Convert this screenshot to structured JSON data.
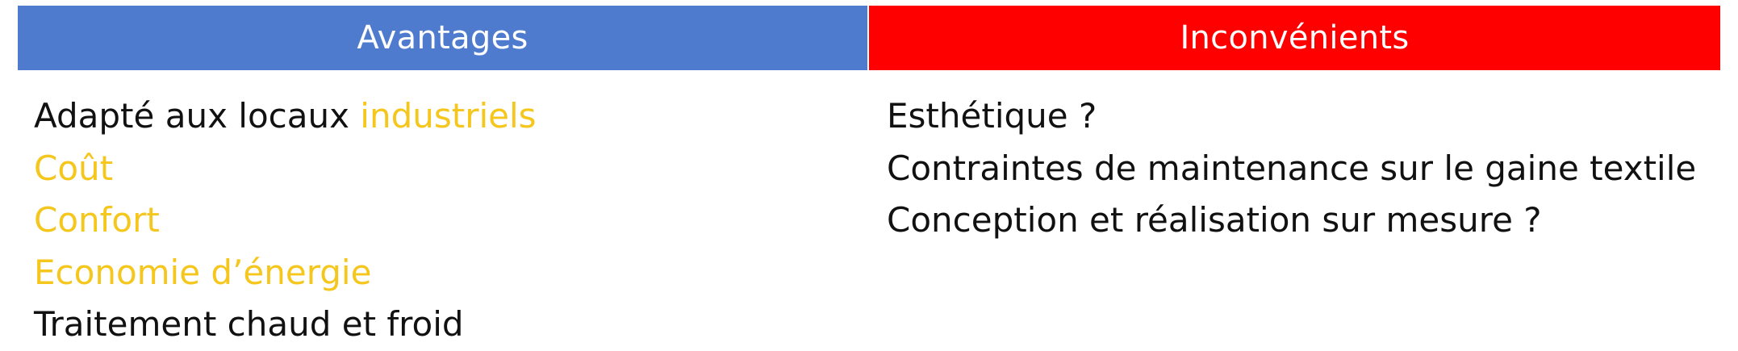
{
  "table": {
    "headers": {
      "advantages": "Avantages",
      "disadvantages": "Inconvénients"
    },
    "colors": {
      "advantages_header": "#4f7bcf",
      "disadvantages_header": "#fe0000",
      "highlight_text": "#f5c61b",
      "normal_text": "#111111"
    },
    "advantages": [
      {
        "prefix": "Adapté aux locaux ",
        "highlight": "industriels"
      },
      {
        "prefix": "",
        "highlight": "Coût"
      },
      {
        "prefix": "",
        "highlight": "Confort"
      },
      {
        "prefix": "",
        "highlight": "Economie d’énergie"
      },
      {
        "prefix": "Traitement chaud et froid",
        "highlight": ""
      }
    ],
    "disadvantages": [
      "Esthétique ?",
      "Contraintes de maintenance sur le gaine textile",
      "Conception et réalisation sur mesure ?"
    ]
  }
}
